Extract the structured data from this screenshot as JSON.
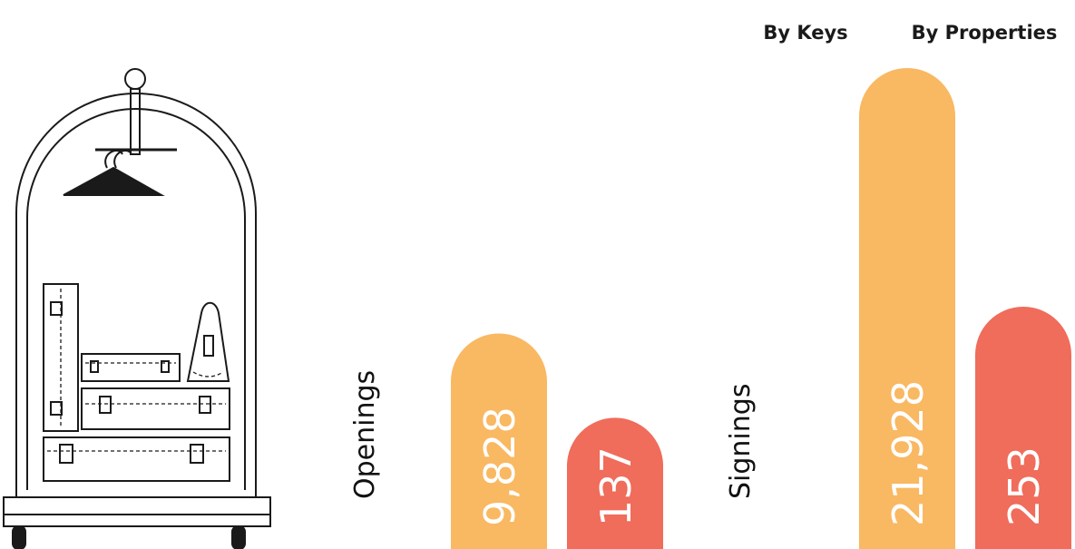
{
  "chart_data": {
    "type": "bar",
    "categories": [
      "Openings",
      "Signings"
    ],
    "series": [
      {
        "name": "By Keys",
        "color": "#f9b862",
        "values": [
          9828,
          21928
        ],
        "value_labels": [
          "9,828",
          "21,928"
        ]
      },
      {
        "name": "By Properties",
        "color": "#f06c5b",
        "values": [
          137,
          253
        ]
      }
    ]
  }
}
